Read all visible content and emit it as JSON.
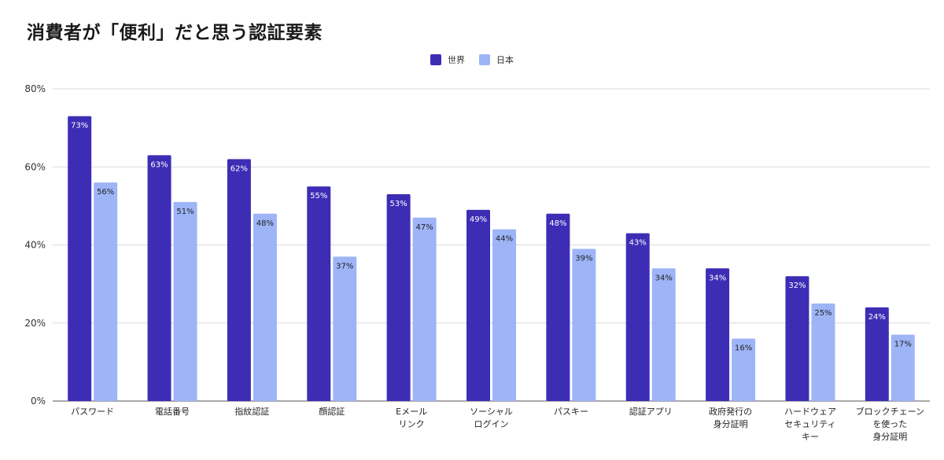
{
  "title": "消費者が「便利」だと思う認証要素",
  "colors": {
    "world": "#3d2db5",
    "japan": "#9db4f7",
    "world_label": "#ffffff",
    "japan_label": "#1f1f1f",
    "grid": "#d9d9d9",
    "axis": "#555555"
  },
  "chart_data": {
    "type": "bar",
    "title": "消費者が「便利」だと思う認証要素",
    "xlabel": "",
    "ylabel": "",
    "ylim": [
      0,
      80
    ],
    "yticks": [
      0,
      20,
      40,
      60,
      80
    ],
    "ytick_labels": [
      "0%",
      "20%",
      "40%",
      "60%",
      "80%"
    ],
    "value_suffix": "%",
    "legend_position": "top-center",
    "grid": true,
    "categories": [
      [
        "パスワード"
      ],
      [
        "電話番号"
      ],
      [
        "指紋認証"
      ],
      [
        "顔認証"
      ],
      [
        "Eメール",
        "リンク"
      ],
      [
        "ソーシャル",
        "ログイン"
      ],
      [
        "パスキー"
      ],
      [
        "認証アプリ"
      ],
      [
        "政府発行の",
        "身分証明"
      ],
      [
        "ハードウェア",
        "セキュリティ",
        "キー"
      ],
      [
        "ブロックチェーン",
        "を使った",
        "身分証明"
      ]
    ],
    "series": [
      {
        "name": "世界",
        "values": [
          73,
          63,
          62,
          55,
          53,
          49,
          48,
          43,
          34,
          32,
          24
        ]
      },
      {
        "name": "日本",
        "values": [
          56,
          51,
          48,
          37,
          47,
          44,
          39,
          34,
          16,
          25,
          17
        ]
      }
    ]
  }
}
